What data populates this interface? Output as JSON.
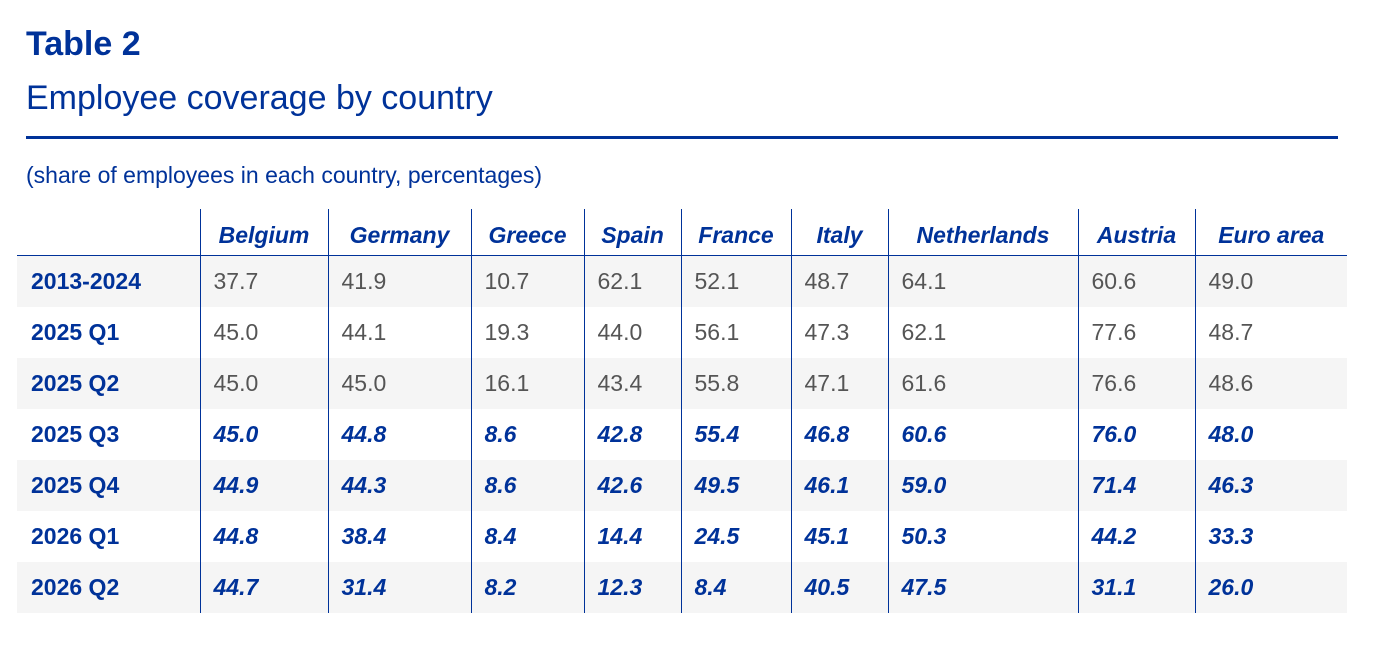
{
  "header": {
    "title": "Table 2",
    "subtitle": "Employee coverage by country",
    "note": "(share of employees in each country, percentages)"
  },
  "table": {
    "columns": [
      "Belgium",
      "Germany",
      "Greece",
      "Spain",
      "France",
      "Italy",
      "Netherlands",
      "Austria",
      "Euro area"
    ],
    "rows": [
      {
        "label": "2013-2024",
        "values": [
          "37.7",
          "41.9",
          "10.7",
          "62.1",
          "52.1",
          "48.7",
          "64.1",
          "60.6",
          "49.0"
        ],
        "projected": false
      },
      {
        "label": "2025 Q1",
        "values": [
          "45.0",
          "44.1",
          "19.3",
          "44.0",
          "56.1",
          "47.3",
          "62.1",
          "77.6",
          "48.7"
        ],
        "projected": false
      },
      {
        "label": "2025 Q2",
        "values": [
          "45.0",
          "45.0",
          "16.1",
          "43.4",
          "55.8",
          "47.1",
          "61.6",
          "76.6",
          "48.6"
        ],
        "projected": false
      },
      {
        "label": "2025 Q3",
        "values": [
          "45.0",
          "44.8",
          "8.6",
          "42.8",
          "55.4",
          "46.8",
          "60.6",
          "76.0",
          "48.0"
        ],
        "projected": true
      },
      {
        "label": "2025 Q4",
        "values": [
          "44.9",
          "44.3",
          "8.6",
          "42.6",
          "49.5",
          "46.1",
          "59.0",
          "71.4",
          "46.3"
        ],
        "projected": true
      },
      {
        "label": "2026 Q1",
        "values": [
          "44.8",
          "38.4",
          "8.4",
          "14.4",
          "24.5",
          "45.1",
          "50.3",
          "44.2",
          "33.3"
        ],
        "projected": true
      },
      {
        "label": "2026 Q2",
        "values": [
          "44.7",
          "31.4",
          "8.2",
          "12.3",
          "8.4",
          "40.5",
          "47.5",
          "31.1",
          "26.0"
        ],
        "projected": true
      }
    ]
  }
}
